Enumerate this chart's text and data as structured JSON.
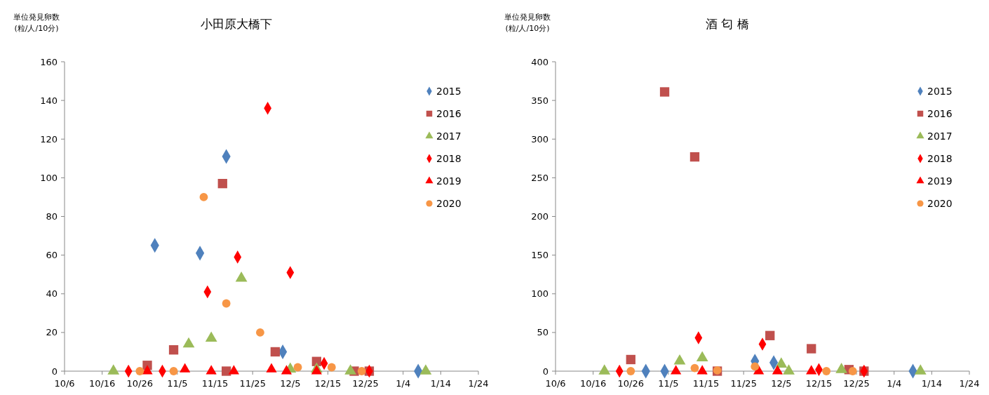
{
  "chart_data": [
    {
      "type": "scatter",
      "title": "小田原大橋下",
      "ylabel": "単位発見卵数\n(粒/人/10分)",
      "xlim": [
        "2020-10-06",
        "2021-01-24"
      ],
      "xticks": [
        {
          "value": "2020-10-06",
          "label": "10/6"
        },
        {
          "value": "2020-10-16",
          "label": "10/16"
        },
        {
          "value": "2020-10-26",
          "label": "10/26"
        },
        {
          "value": "2020-11-05",
          "label": "11/5"
        },
        {
          "value": "2020-11-15",
          "label": "11/15"
        },
        {
          "value": "2020-11-25",
          "label": "11/25"
        },
        {
          "value": "2020-12-05",
          "label": "12/5"
        },
        {
          "value": "2020-12-15",
          "label": "12/15"
        },
        {
          "value": "2020-12-25",
          "label": "12/25"
        },
        {
          "value": "2021-01-04",
          "label": "1/4"
        },
        {
          "value": "2021-01-14",
          "label": "1/14"
        },
        {
          "value": "2021-01-24",
          "label": "1/24"
        }
      ],
      "ylim": [
        0,
        160
      ],
      "yticks": [
        0,
        20,
        40,
        60,
        80,
        100,
        120,
        140,
        160
      ],
      "legend": "top right",
      "series": [
        {
          "name": "2015",
          "color": "#4f81bd",
          "marker": "diamond",
          "x": [
            "2020-10-30",
            "2020-11-11",
            "2020-11-18",
            "2020-12-03",
            "2021-01-08"
          ],
          "values": [
            65,
            61,
            111,
            10,
            0
          ]
        },
        {
          "name": "2016",
          "color": "#c0504d",
          "marker": "square",
          "x": [
            "2020-10-28",
            "2020-11-04",
            "2020-11-17",
            "2020-11-18",
            "2020-12-01",
            "2020-12-12",
            "2020-12-22",
            "2020-12-26"
          ],
          "values": [
            3,
            11,
            97,
            0,
            10,
            5,
            0,
            0
          ]
        },
        {
          "name": "2017",
          "color": "#9bbb59",
          "marker": "triangle",
          "x": [
            "2020-10-19",
            "2020-11-08",
            "2020-11-14",
            "2020-11-22",
            "2020-12-05",
            "2020-12-12",
            "2020-12-21",
            "2021-01-10"
          ],
          "values": [
            0,
            14,
            17,
            48,
            1,
            1,
            0,
            0
          ]
        },
        {
          "name": "2018",
          "color": "#ff0000",
          "marker": "diamond",
          "x": [
            "2020-10-23",
            "2020-11-01",
            "2020-11-13",
            "2020-11-21",
            "2020-11-29",
            "2020-12-05",
            "2020-12-14",
            "2020-12-26"
          ],
          "values": [
            0,
            0,
            41,
            59,
            136,
            51,
            4,
            0
          ]
        },
        {
          "name": "2019",
          "color": "#ff0000",
          "marker": "triangle",
          "x": [
            "2020-10-28",
            "2020-11-07",
            "2020-11-14",
            "2020-11-20",
            "2020-11-30",
            "2020-12-04",
            "2020-12-12"
          ],
          "values": [
            0,
            1,
            0,
            0,
            1,
            0,
            0
          ]
        },
        {
          "name": "2020",
          "color": "#f79646",
          "marker": "circle",
          "x": [
            "2020-10-26",
            "2020-11-04",
            "2020-11-12",
            "2020-11-18",
            "2020-11-27",
            "2020-12-07",
            "2020-12-16",
            "2020-12-24"
          ],
          "values": [
            0,
            0,
            90,
            35,
            20,
            2,
            2,
            0
          ]
        }
      ]
    },
    {
      "type": "scatter",
      "title": "酒 匂 橋",
      "ylabel": "単位発見卵数\n(粒/人/10分)",
      "xlim": [
        "2020-10-06",
        "2021-01-24"
      ],
      "xticks": [
        {
          "value": "2020-10-06",
          "label": "10/6"
        },
        {
          "value": "2020-10-16",
          "label": "10/16"
        },
        {
          "value": "2020-10-26",
          "label": "10/26"
        },
        {
          "value": "2020-11-05",
          "label": "11/5"
        },
        {
          "value": "2020-11-15",
          "label": "11/15"
        },
        {
          "value": "2020-11-25",
          "label": "11/25"
        },
        {
          "value": "2020-12-05",
          "label": "12/5"
        },
        {
          "value": "2020-12-15",
          "label": "12/15"
        },
        {
          "value": "2020-12-25",
          "label": "12/25"
        },
        {
          "value": "2021-01-04",
          "label": "1/4"
        },
        {
          "value": "2021-01-14",
          "label": "1/14"
        },
        {
          "value": "2021-01-24",
          "label": "1/24"
        }
      ],
      "ylim": [
        0,
        400
      ],
      "yticks": [
        0,
        50,
        100,
        150,
        200,
        250,
        300,
        350,
        400
      ],
      "legend": "top right",
      "series": [
        {
          "name": "2015",
          "color": "#4f81bd",
          "marker": "diamond",
          "x": [
            "2020-10-30",
            "2020-11-04",
            "2020-11-28",
            "2020-12-03",
            "2021-01-09"
          ],
          "values": [
            0,
            0,
            13,
            11,
            0
          ]
        },
        {
          "name": "2016",
          "color": "#c0504d",
          "marker": "square",
          "x": [
            "2020-10-26",
            "2020-11-04",
            "2020-11-12",
            "2020-11-18",
            "2020-12-02",
            "2020-12-13",
            "2020-12-23",
            "2020-12-27"
          ],
          "values": [
            15,
            361,
            277,
            0,
            46,
            29,
            2,
            0
          ]
        },
        {
          "name": "2017",
          "color": "#9bbb59",
          "marker": "triangle",
          "x": [
            "2020-10-19",
            "2020-11-08",
            "2020-11-14",
            "2020-12-05",
            "2020-12-07",
            "2020-12-21",
            "2021-01-11"
          ],
          "values": [
            0,
            13,
            17,
            9,
            0,
            2,
            0
          ]
        },
        {
          "name": "2018",
          "color": "#ff0000",
          "marker": "diamond",
          "x": [
            "2020-10-23",
            "2020-11-13",
            "2020-11-30",
            "2020-12-15",
            "2020-12-27"
          ],
          "values": [
            0,
            43,
            35,
            2,
            0
          ]
        },
        {
          "name": "2019",
          "color": "#ff0000",
          "marker": "triangle",
          "x": [
            "2020-11-07",
            "2020-11-14",
            "2020-11-29",
            "2020-12-04",
            "2020-12-13"
          ],
          "values": [
            0,
            0,
            0,
            0,
            0
          ]
        },
        {
          "name": "2020",
          "color": "#f79646",
          "marker": "circle",
          "x": [
            "2020-10-26",
            "2020-11-12",
            "2020-11-18",
            "2020-11-28",
            "2020-12-17",
            "2020-12-24"
          ],
          "values": [
            0,
            4,
            1,
            6,
            0,
            0
          ]
        }
      ]
    }
  ]
}
